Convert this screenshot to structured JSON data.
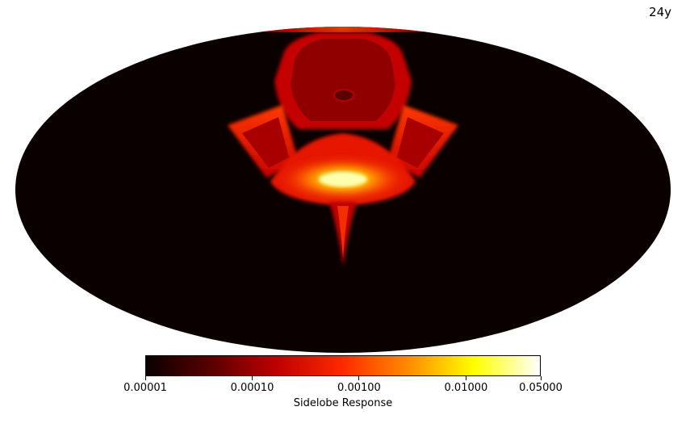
{
  "corner_label": "24y",
  "colorbar": {
    "label": "Sidelobe Response",
    "scale": "log",
    "min": 1e-05,
    "max": 0.05,
    "colormap": "hot",
    "ticks": [
      {
        "value": 1e-05,
        "label": "0.00001"
      },
      {
        "value": 0.0001,
        "label": "0.00010"
      },
      {
        "value": 0.001,
        "label": "0.00100"
      },
      {
        "value": 0.01,
        "label": "0.01000"
      },
      {
        "value": 0.05,
        "label": "0.05000"
      }
    ],
    "stops": [
      "#0b0000",
      "#5a0000",
      "#c00000",
      "#ff2a00",
      "#ff8c00",
      "#ffff00",
      "#ffffff"
    ]
  },
  "map": {
    "projection": "mollweide",
    "background_color": "#0b0000"
  }
}
